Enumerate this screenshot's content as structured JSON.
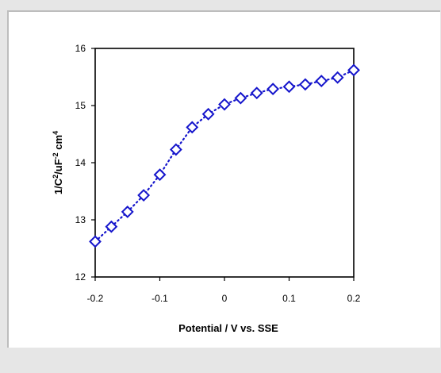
{
  "chart_data": {
    "type": "scatter",
    "title": "",
    "xlabel": "Potential / V vs. SSE",
    "ylabel_parts": [
      "1/C",
      "2",
      "/uF",
      "-2",
      " cm",
      "4"
    ],
    "xlim": [
      -0.2,
      0.2
    ],
    "ylim": [
      12,
      16
    ],
    "x_ticks": [
      -0.2,
      -0.1,
      0,
      0.1,
      0.2
    ],
    "x_tick_labels": [
      "-0.2",
      "-0.1",
      "0",
      "0.1",
      "0.2"
    ],
    "y_ticks": [
      12,
      13,
      14,
      15,
      16
    ],
    "y_tick_labels": [
      "12",
      "13",
      "14",
      "15",
      "16"
    ],
    "grid": false,
    "marker": "diamond-open",
    "line_style": "dotted",
    "color": "#1515cc",
    "series": [
      {
        "x": [
          -0.2,
          -0.175,
          -0.15,
          -0.125,
          -0.1,
          -0.075,
          -0.05,
          -0.025,
          0.0,
          0.025,
          0.05,
          0.075,
          0.1,
          0.125,
          0.15,
          0.175,
          0.2
        ],
        "y": [
          12.62,
          12.88,
          13.14,
          13.43,
          13.79,
          14.23,
          14.62,
          14.85,
          15.02,
          15.13,
          15.22,
          15.29,
          15.33,
          15.37,
          15.43,
          15.49,
          15.62
        ]
      }
    ]
  }
}
